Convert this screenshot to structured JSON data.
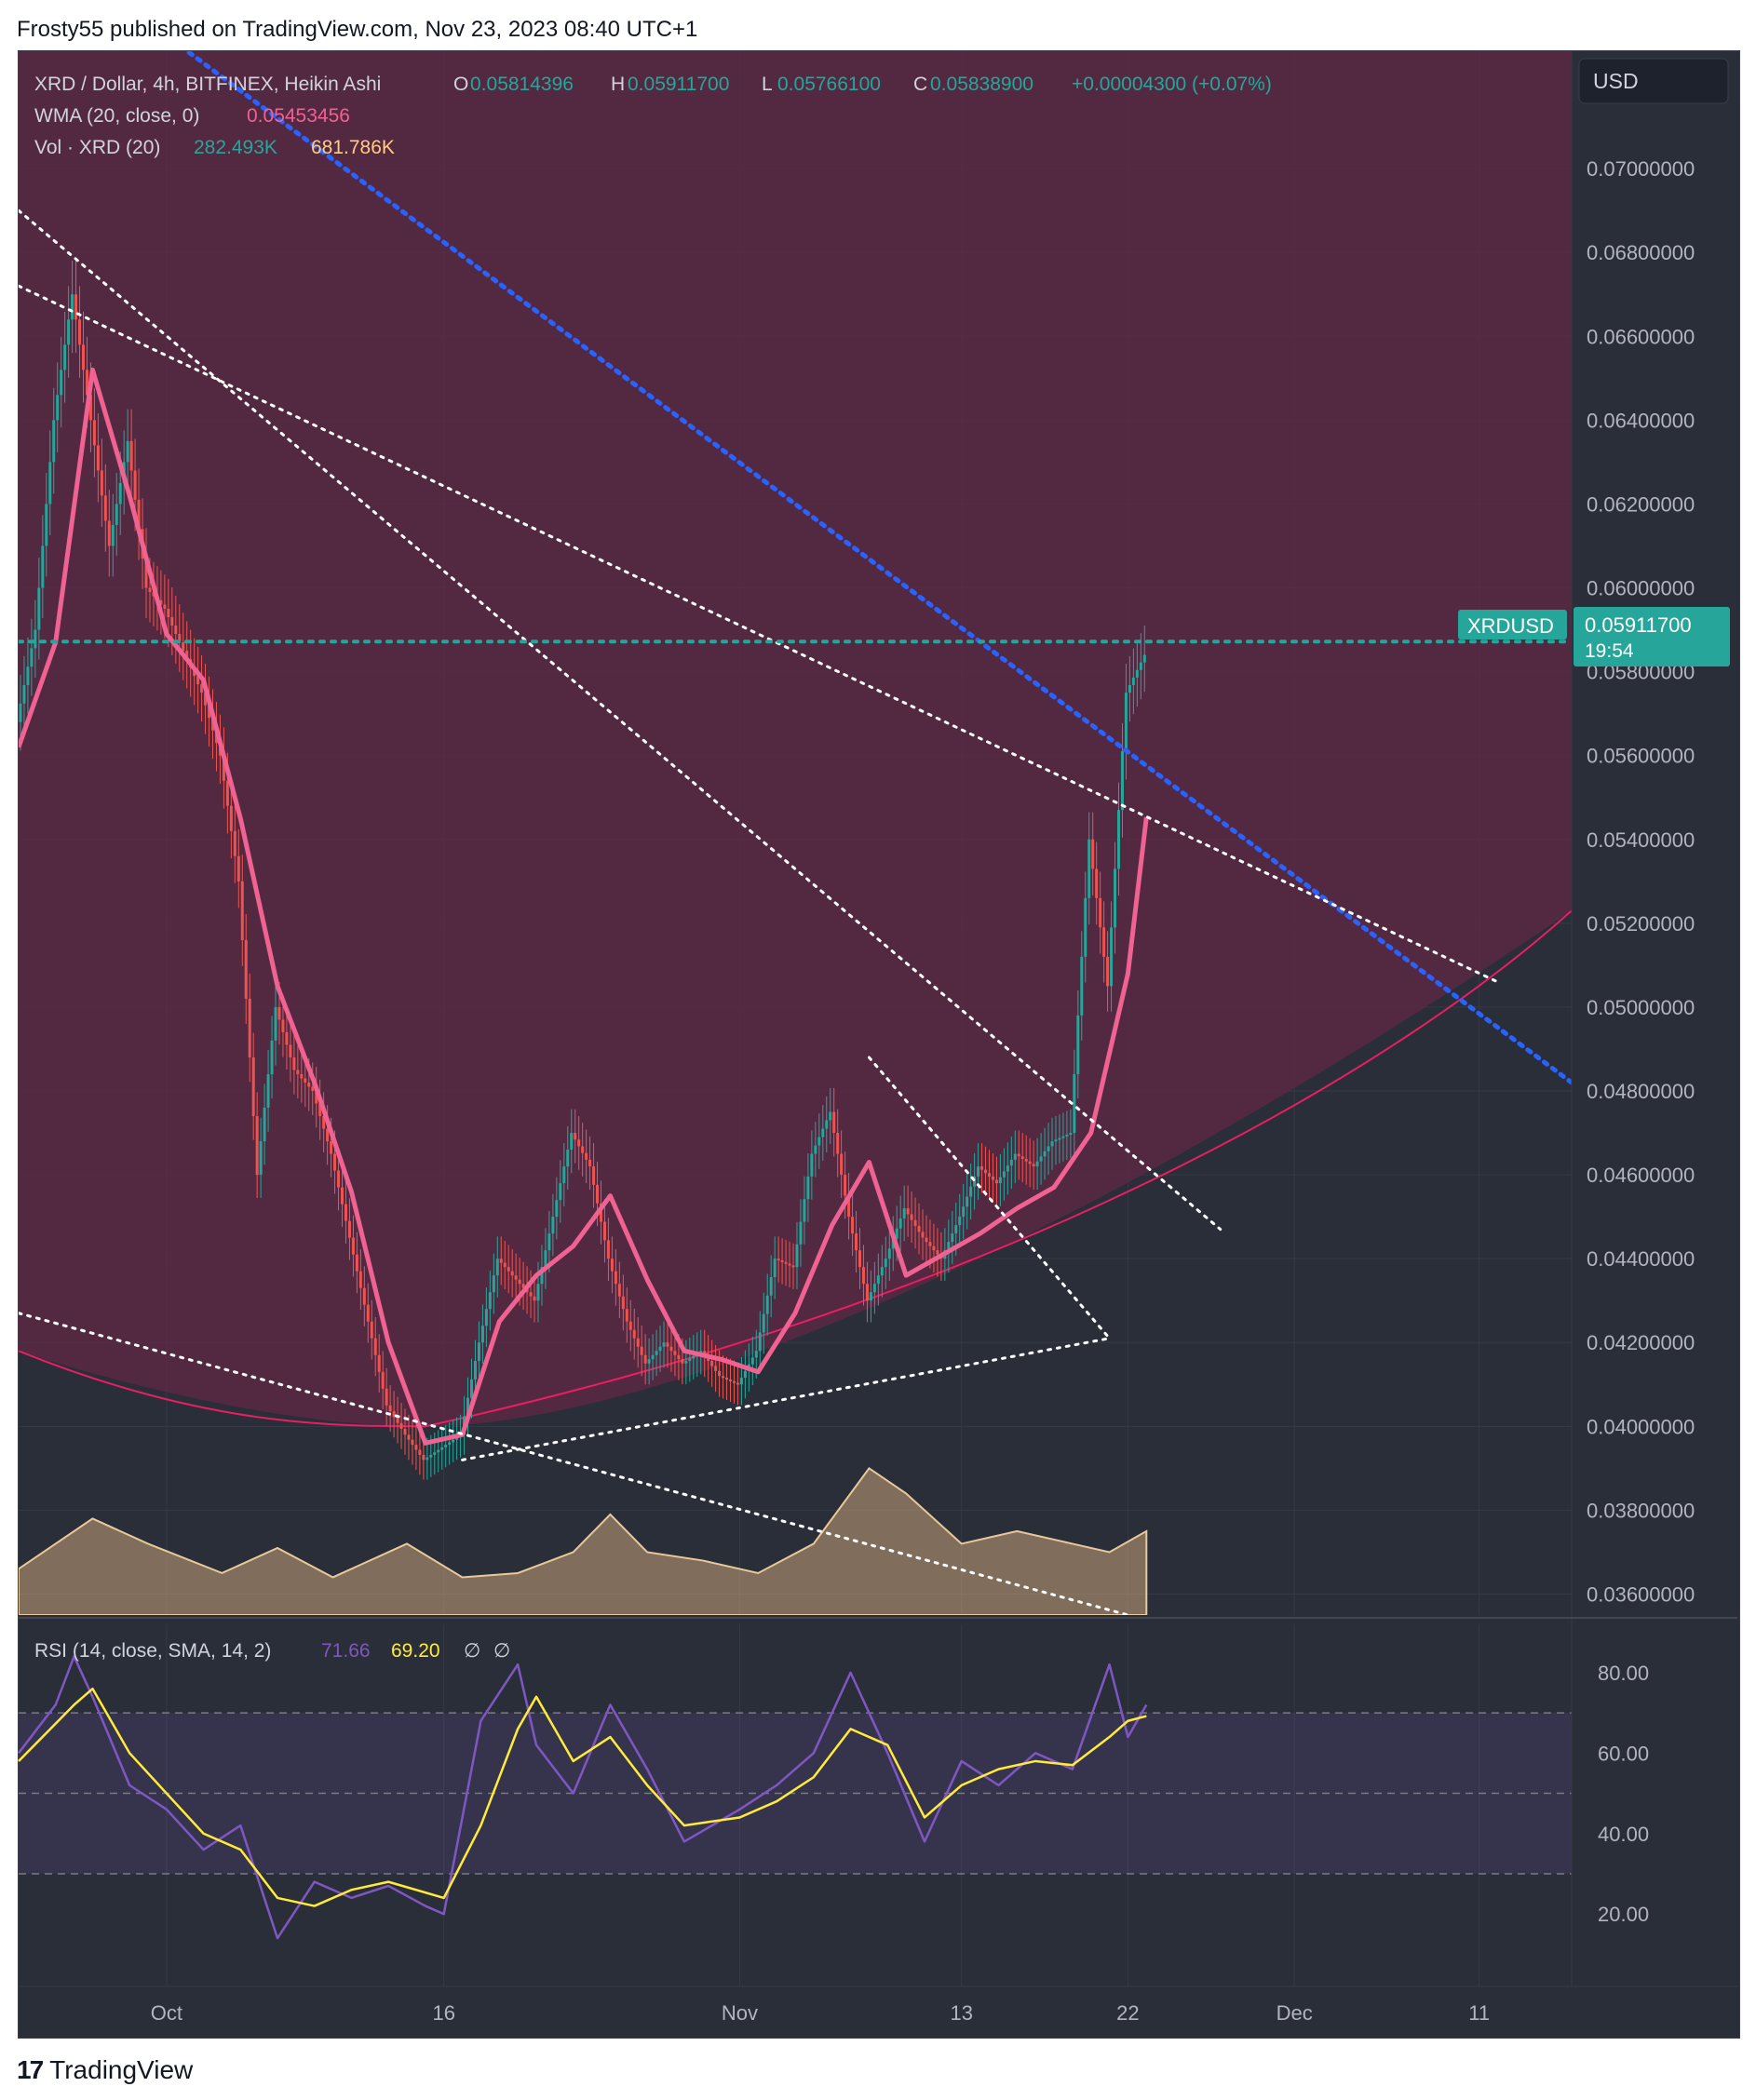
{
  "header": {
    "published_by": "Frosty55 published on TradingView.com, Nov 23, 2023 08:40 UTC+1"
  },
  "footer": {
    "brand": "TradingView"
  },
  "legend": {
    "symbol": "XRD / Dollar, 4h, BITFINEX, Heikin Ashi",
    "o_label": "O",
    "o_value": "0.05814396",
    "h_label": "H",
    "h_value": "0.05911700",
    "l_label": "L",
    "l_value": "0.05766100",
    "c_label": "C",
    "c_value": "0.05838900",
    "change": "+0.00004300 (+0.07%)",
    "wma_label": "WMA (20, close, 0)",
    "wma_value": "0.05453456",
    "vol_label": "Vol · XRD (20)",
    "vol_value1": "282.493K",
    "vol_value2": "681.786K"
  },
  "currency_button": "USD",
  "price_label": {
    "symbol": "XRDUSD",
    "price": "0.05911700",
    "countdown": "19:54"
  },
  "rsi_legend": {
    "label": "RSI (14, close, SMA, 14, 2)",
    "value1": "71.66",
    "value2": "69.20",
    "sym1": "∅",
    "sym2": "∅"
  },
  "colors": {
    "bg": "#2a2e39",
    "up": "#26a69a",
    "down": "#ef5350",
    "wma": "#f06292",
    "rsi": "#7e57c2",
    "rsi_ma": "#ffeb3b",
    "zone": "#5b2844",
    "blue_line": "#2962ff",
    "grid": "#363a45",
    "text": "#b2b5be"
  },
  "chart_data": [
    {
      "type": "candlestick",
      "title": "XRD / Dollar, 4h, BITFINEX, Heikin Ashi",
      "x_ticks": [
        "Oct",
        "16",
        "Nov",
        "13",
        "22",
        "Dec",
        "11"
      ],
      "y_ticks": [
        "0.07000000",
        "0.06800000",
        "0.06600000",
        "0.06400000",
        "0.06200000",
        "0.06000000",
        "0.05800000",
        "0.05600000",
        "0.05400000",
        "0.05200000",
        "0.05000000",
        "0.04800000",
        "0.04600000",
        "0.04400000",
        "0.04200000",
        "0.04000000",
        "0.03800000",
        "0.03600000"
      ],
      "ylim": [
        0.0355,
        0.0728
      ],
      "time_range": [
        "2023-09-23",
        "2023-12-16"
      ],
      "last_price": 0.059117,
      "series": [
        {
          "name": "WMA (20, close, 0)",
          "points": [
            [
              "2023-09-23",
              0.0562
            ],
            [
              "2023-09-25",
              0.0587
            ],
            [
              "2023-09-27",
              0.0652
            ],
            [
              "2023-09-29",
              0.0622
            ],
            [
              "2023-10-01",
              0.0589
            ],
            [
              "2023-10-03",
              0.0578
            ],
            [
              "2023-10-05",
              0.0545
            ],
            [
              "2023-10-07",
              0.0505
            ],
            [
              "2023-10-09",
              0.0482
            ],
            [
              "2023-10-11",
              0.0456
            ],
            [
              "2023-10-13",
              0.042
            ],
            [
              "2023-10-15",
              0.0396
            ],
            [
              "2023-10-17",
              0.0398
            ],
            [
              "2023-10-19",
              0.0425
            ],
            [
              "2023-10-21",
              0.0436
            ],
            [
              "2023-10-23",
              0.0443
            ],
            [
              "2023-10-25",
              0.0455
            ],
            [
              "2023-10-27",
              0.0435
            ],
            [
              "2023-10-29",
              0.0418
            ],
            [
              "2023-10-31",
              0.0416
            ],
            [
              "2023-11-02",
              0.0413
            ],
            [
              "2023-11-04",
              0.0427
            ],
            [
              "2023-11-06",
              0.0448
            ],
            [
              "2023-11-08",
              0.0463
            ],
            [
              "2023-11-10",
              0.0436
            ],
            [
              "2023-11-12",
              0.0441
            ],
            [
              "2023-11-14",
              0.0446
            ],
            [
              "2023-11-16",
              0.0452
            ],
            [
              "2023-11-18",
              0.0457
            ],
            [
              "2023-11-20",
              0.047
            ],
            [
              "2023-11-22",
              0.0508
            ],
            [
              "2023-11-23",
              0.05453
            ]
          ]
        },
        {
          "name": "Heikin Ashi close",
          "points": [
            [
              "2023-09-23",
              0.0568
            ],
            [
              "2023-09-24",
              0.059
            ],
            [
              "2023-09-25",
              0.064
            ],
            [
              "2023-09-26",
              0.067
            ],
            [
              "2023-09-27",
              0.064
            ],
            [
              "2023-09-28",
              0.061
            ],
            [
              "2023-09-29",
              0.0635
            ],
            [
              "2023-09-30",
              0.06
            ],
            [
              "2023-10-01",
              0.0595
            ],
            [
              "2023-10-02",
              0.0585
            ],
            [
              "2023-10-03",
              0.0575
            ],
            [
              "2023-10-04",
              0.056
            ],
            [
              "2023-10-05",
              0.053
            ],
            [
              "2023-10-06",
              0.046
            ],
            [
              "2023-10-07",
              0.05
            ],
            [
              "2023-10-08",
              0.0485
            ],
            [
              "2023-10-09",
              0.048
            ],
            [
              "2023-10-10",
              0.0465
            ],
            [
              "2023-10-11",
              0.0445
            ],
            [
              "2023-10-12",
              0.0425
            ],
            [
              "2023-10-13",
              0.0405
            ],
            [
              "2023-10-14",
              0.0398
            ],
            [
              "2023-10-15",
              0.0392
            ],
            [
              "2023-10-16",
              0.0395
            ],
            [
              "2023-10-17",
              0.0398
            ],
            [
              "2023-10-18",
              0.042
            ],
            [
              "2023-10-19",
              0.044
            ],
            [
              "2023-10-20",
              0.0435
            ],
            [
              "2023-10-21",
              0.043
            ],
            [
              "2023-10-22",
              0.045
            ],
            [
              "2023-10-23",
              0.047
            ],
            [
              "2023-10-24",
              0.0462
            ],
            [
              "2023-10-25",
              0.044
            ],
            [
              "2023-10-26",
              0.0425
            ],
            [
              "2023-10-27",
              0.0415
            ],
            [
              "2023-10-28",
              0.042
            ],
            [
              "2023-10-29",
              0.0415
            ],
            [
              "2023-10-30",
              0.0418
            ],
            [
              "2023-10-31",
              0.0412
            ],
            [
              "2023-11-01",
              0.041
            ],
            [
              "2023-11-02",
              0.0418
            ],
            [
              "2023-11-03",
              0.044
            ],
            [
              "2023-11-04",
              0.0438
            ],
            [
              "2023-11-05",
              0.0465
            ],
            [
              "2023-11-06",
              0.0475
            ],
            [
              "2023-11-07",
              0.045
            ],
            [
              "2023-11-08",
              0.043
            ],
            [
              "2023-11-09",
              0.044
            ],
            [
              "2023-11-10",
              0.0452
            ],
            [
              "2023-11-11",
              0.0445
            ],
            [
              "2023-11-12",
              0.044
            ],
            [
              "2023-11-13",
              0.045
            ],
            [
              "2023-11-14",
              0.0462
            ],
            [
              "2023-11-15",
              0.0458
            ],
            [
              "2023-11-16",
              0.0465
            ],
            [
              "2023-11-17",
              0.0462
            ],
            [
              "2023-11-18",
              0.0468
            ],
            [
              "2023-11-19",
              0.047
            ],
            [
              "2023-11-20",
              0.054
            ],
            [
              "2023-11-21",
              0.0505
            ],
            [
              "2023-11-22",
              0.0575
            ],
            [
              "2023-11-23",
              0.0584
            ]
          ]
        }
      ],
      "annotations": [
        {
          "type": "line",
          "style": "dotted-blue",
          "from": [
            "2023-09-30",
            0.0735
          ],
          "to": [
            "2023-12-16",
            0.0482
          ]
        },
        {
          "type": "line",
          "style": "dotted-white",
          "from": [
            "2023-09-23",
            0.069
          ],
          "to": [
            "2023-11-27",
            0.0447
          ]
        },
        {
          "type": "line",
          "style": "dotted-white",
          "from": [
            "2023-09-23",
            0.0672
          ],
          "to": [
            "2023-12-12",
            0.0506
          ]
        },
        {
          "type": "line",
          "style": "dotted-white",
          "from": [
            "2023-09-23",
            0.0427
          ],
          "to": [
            "2023-11-22",
            0.0355
          ]
        },
        {
          "type": "line",
          "style": "dotted-white",
          "from": [
            "2023-10-17",
            0.0392
          ],
          "to": [
            "2023-11-21",
            0.0421
          ]
        },
        {
          "type": "line",
          "style": "dotted-white",
          "from": [
            "2023-11-08",
            0.0488
          ],
          "to": [
            "2023-11-21",
            0.0421
          ]
        },
        {
          "type": "curve",
          "style": "pink-arc",
          "points": [
            [
              "2023-09-23",
              0.0418
            ],
            [
              "2023-10-15",
              0.04
            ],
            [
              "2023-11-15",
              0.043
            ],
            [
              "2023-12-16",
              0.0523
            ]
          ]
        }
      ]
    },
    {
      "type": "area",
      "title": "Vol · XRD (20)",
      "series": [
        {
          "name": "282.493K",
          "points": [
            [
              "2023-09-23",
              0.0366
            ],
            [
              "2023-09-27",
              0.0378
            ],
            [
              "2023-09-30",
              0.0372
            ],
            [
              "2023-10-04",
              0.0365
            ],
            [
              "2023-10-07",
              0.0371
            ],
            [
              "2023-10-10",
              0.0364
            ],
            [
              "2023-10-14",
              0.0372
            ],
            [
              "2023-10-17",
              0.0364
            ],
            [
              "2023-10-20",
              0.0365
            ],
            [
              "2023-10-23",
              0.037
            ],
            [
              "2023-10-25",
              0.0379
            ],
            [
              "2023-10-27",
              0.037
            ],
            [
              "2023-10-30",
              0.0368
            ],
            [
              "2023-11-02",
              0.0365
            ],
            [
              "2023-11-05",
              0.0372
            ],
            [
              "2023-11-08",
              0.039
            ],
            [
              "2023-11-10",
              0.0384
            ],
            [
              "2023-11-13",
              0.0372
            ],
            [
              "2023-11-16",
              0.0375
            ],
            [
              "2023-11-19",
              0.0372
            ],
            [
              "2023-11-21",
              0.037
            ],
            [
              "2023-11-23",
              0.0375
            ]
          ]
        }
      ]
    },
    {
      "type": "line",
      "title": "RSI (14, close, SMA, 14, 2)",
      "y_ticks": [
        "80.00",
        "60.00",
        "40.00",
        "20.00"
      ],
      "ylim": [
        2,
        92
      ],
      "bands": [
        70,
        50,
        30
      ],
      "series": [
        {
          "name": "71.66",
          "points": [
            [
              "2023-09-23",
              60
            ],
            [
              "2023-09-25",
              72
            ],
            [
              "2023-09-26",
              84
            ],
            [
              "2023-09-27",
              74
            ],
            [
              "2023-09-29",
              52
            ],
            [
              "2023-10-01",
              46
            ],
            [
              "2023-10-03",
              36
            ],
            [
              "2023-10-05",
              42
            ],
            [
              "2023-10-07",
              14
            ],
            [
              "2023-10-09",
              28
            ],
            [
              "2023-10-11",
              24
            ],
            [
              "2023-10-13",
              27
            ],
            [
              "2023-10-15",
              22
            ],
            [
              "2023-10-16",
              20
            ],
            [
              "2023-10-18",
              68
            ],
            [
              "2023-10-20",
              82
            ],
            [
              "2023-10-21",
              62
            ],
            [
              "2023-10-23",
              50
            ],
            [
              "2023-10-25",
              72
            ],
            [
              "2023-10-27",
              56
            ],
            [
              "2023-10-29",
              38
            ],
            [
              "2023-11-01",
              46
            ],
            [
              "2023-11-03",
              52
            ],
            [
              "2023-11-05",
              60
            ],
            [
              "2023-11-07",
              80
            ],
            [
              "2023-11-09",
              60
            ],
            [
              "2023-11-11",
              38
            ],
            [
              "2023-11-13",
              58
            ],
            [
              "2023-11-15",
              52
            ],
            [
              "2023-11-17",
              60
            ],
            [
              "2023-11-19",
              56
            ],
            [
              "2023-11-21",
              82
            ],
            [
              "2023-11-22",
              64
            ],
            [
              "2023-11-23",
              72
            ]
          ]
        },
        {
          "name": "69.20",
          "points": [
            [
              "2023-09-23",
              58
            ],
            [
              "2023-09-26",
              72
            ],
            [
              "2023-09-27",
              76
            ],
            [
              "2023-09-29",
              60
            ],
            [
              "2023-10-01",
              50
            ],
            [
              "2023-10-03",
              40
            ],
            [
              "2023-10-05",
              36
            ],
            [
              "2023-10-07",
              24
            ],
            [
              "2023-10-09",
              22
            ],
            [
              "2023-10-11",
              26
            ],
            [
              "2023-10-13",
              28
            ],
            [
              "2023-10-16",
              24
            ],
            [
              "2023-10-18",
              42
            ],
            [
              "2023-10-20",
              66
            ],
            [
              "2023-10-21",
              74
            ],
            [
              "2023-10-23",
              58
            ],
            [
              "2023-10-25",
              64
            ],
            [
              "2023-10-27",
              52
            ],
            [
              "2023-10-29",
              42
            ],
            [
              "2023-11-01",
              44
            ],
            [
              "2023-11-03",
              48
            ],
            [
              "2023-11-05",
              54
            ],
            [
              "2023-11-07",
              66
            ],
            [
              "2023-11-09",
              62
            ],
            [
              "2023-11-11",
              44
            ],
            [
              "2023-11-13",
              52
            ],
            [
              "2023-11-15",
              56
            ],
            [
              "2023-11-17",
              58
            ],
            [
              "2023-11-19",
              57
            ],
            [
              "2023-11-21",
              64
            ],
            [
              "2023-11-22",
              68
            ],
            [
              "2023-11-23",
              69.2
            ]
          ]
        }
      ]
    }
  ]
}
